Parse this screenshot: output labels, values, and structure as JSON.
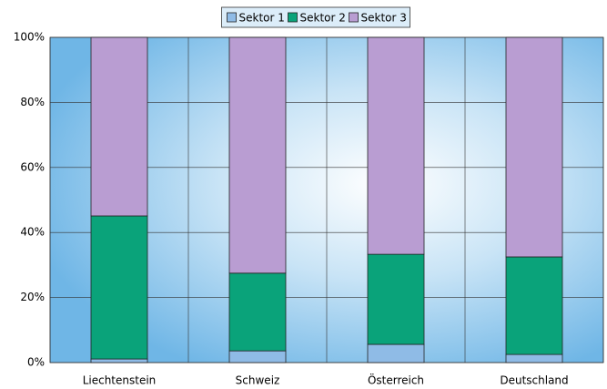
{
  "chart_data": {
    "type": "stacked_bar",
    "categories": [
      "Liechtenstein",
      "Schweiz",
      "Österreich",
      "Deutschland"
    ],
    "series": [
      {
        "name": "Sektor 1",
        "color": "#8fbbe6",
        "values": [
          1.1,
          3.6,
          5.6,
          2.5
        ]
      },
      {
        "name": "Sektor 2",
        "color": "#0aa37a",
        "values": [
          44,
          23.9,
          27.7,
          30
        ]
      },
      {
        "name": "Sektor 3",
        "color": "#b99dd2",
        "values": [
          54.9,
          72.5,
          66.7,
          67.5
        ]
      }
    ],
    "ylim": [
      0,
      100
    ],
    "yticks": [
      {
        "value": 0,
        "label": "0%"
      },
      {
        "value": 20,
        "label": "20%"
      },
      {
        "value": 40,
        "label": "40%"
      },
      {
        "value": 60,
        "label": "60%"
      },
      {
        "value": 80,
        "label": "80%"
      },
      {
        "value": 100,
        "label": "100%"
      }
    ],
    "grid": true,
    "legend": "top"
  }
}
